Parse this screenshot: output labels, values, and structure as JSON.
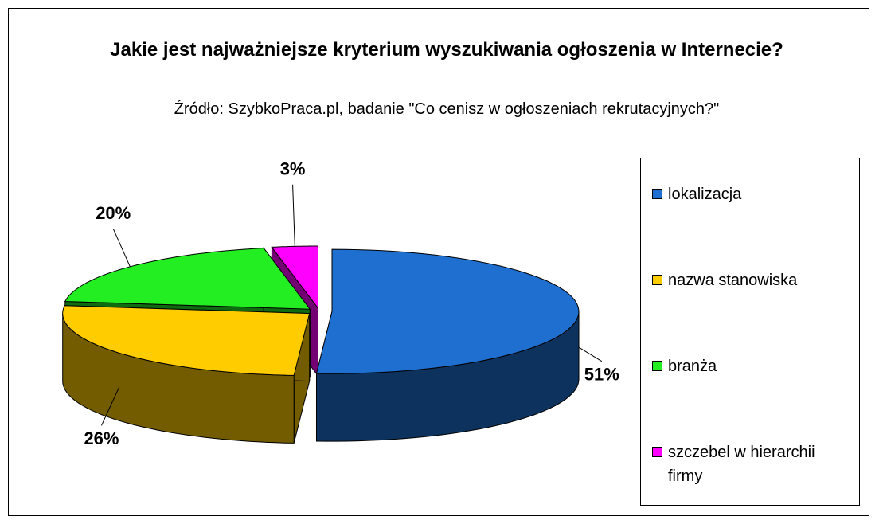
{
  "chart_data": {
    "type": "pie3d",
    "title": "Jakie jest najważniejsze kryterium wyszukiwania ogłoszenia w Internecie?",
    "subtitle": "Źródło: SzybkoPraca.pl, badanie \"Co cenisz w ogłoszeniach rekrutacyjnych?\"",
    "categories": [
      "lokalizacja",
      "nazwa stanowiska",
      "branża",
      "szczebel w hierarchii firmy"
    ],
    "values": [
      51,
      26,
      20,
      3
    ],
    "value_labels": [
      "51%",
      "26%",
      "20%",
      "3%"
    ],
    "colors": [
      "#1e6fd0",
      "#ffcc00",
      "#22ee22",
      "#ff00ff"
    ],
    "legend": "right"
  }
}
